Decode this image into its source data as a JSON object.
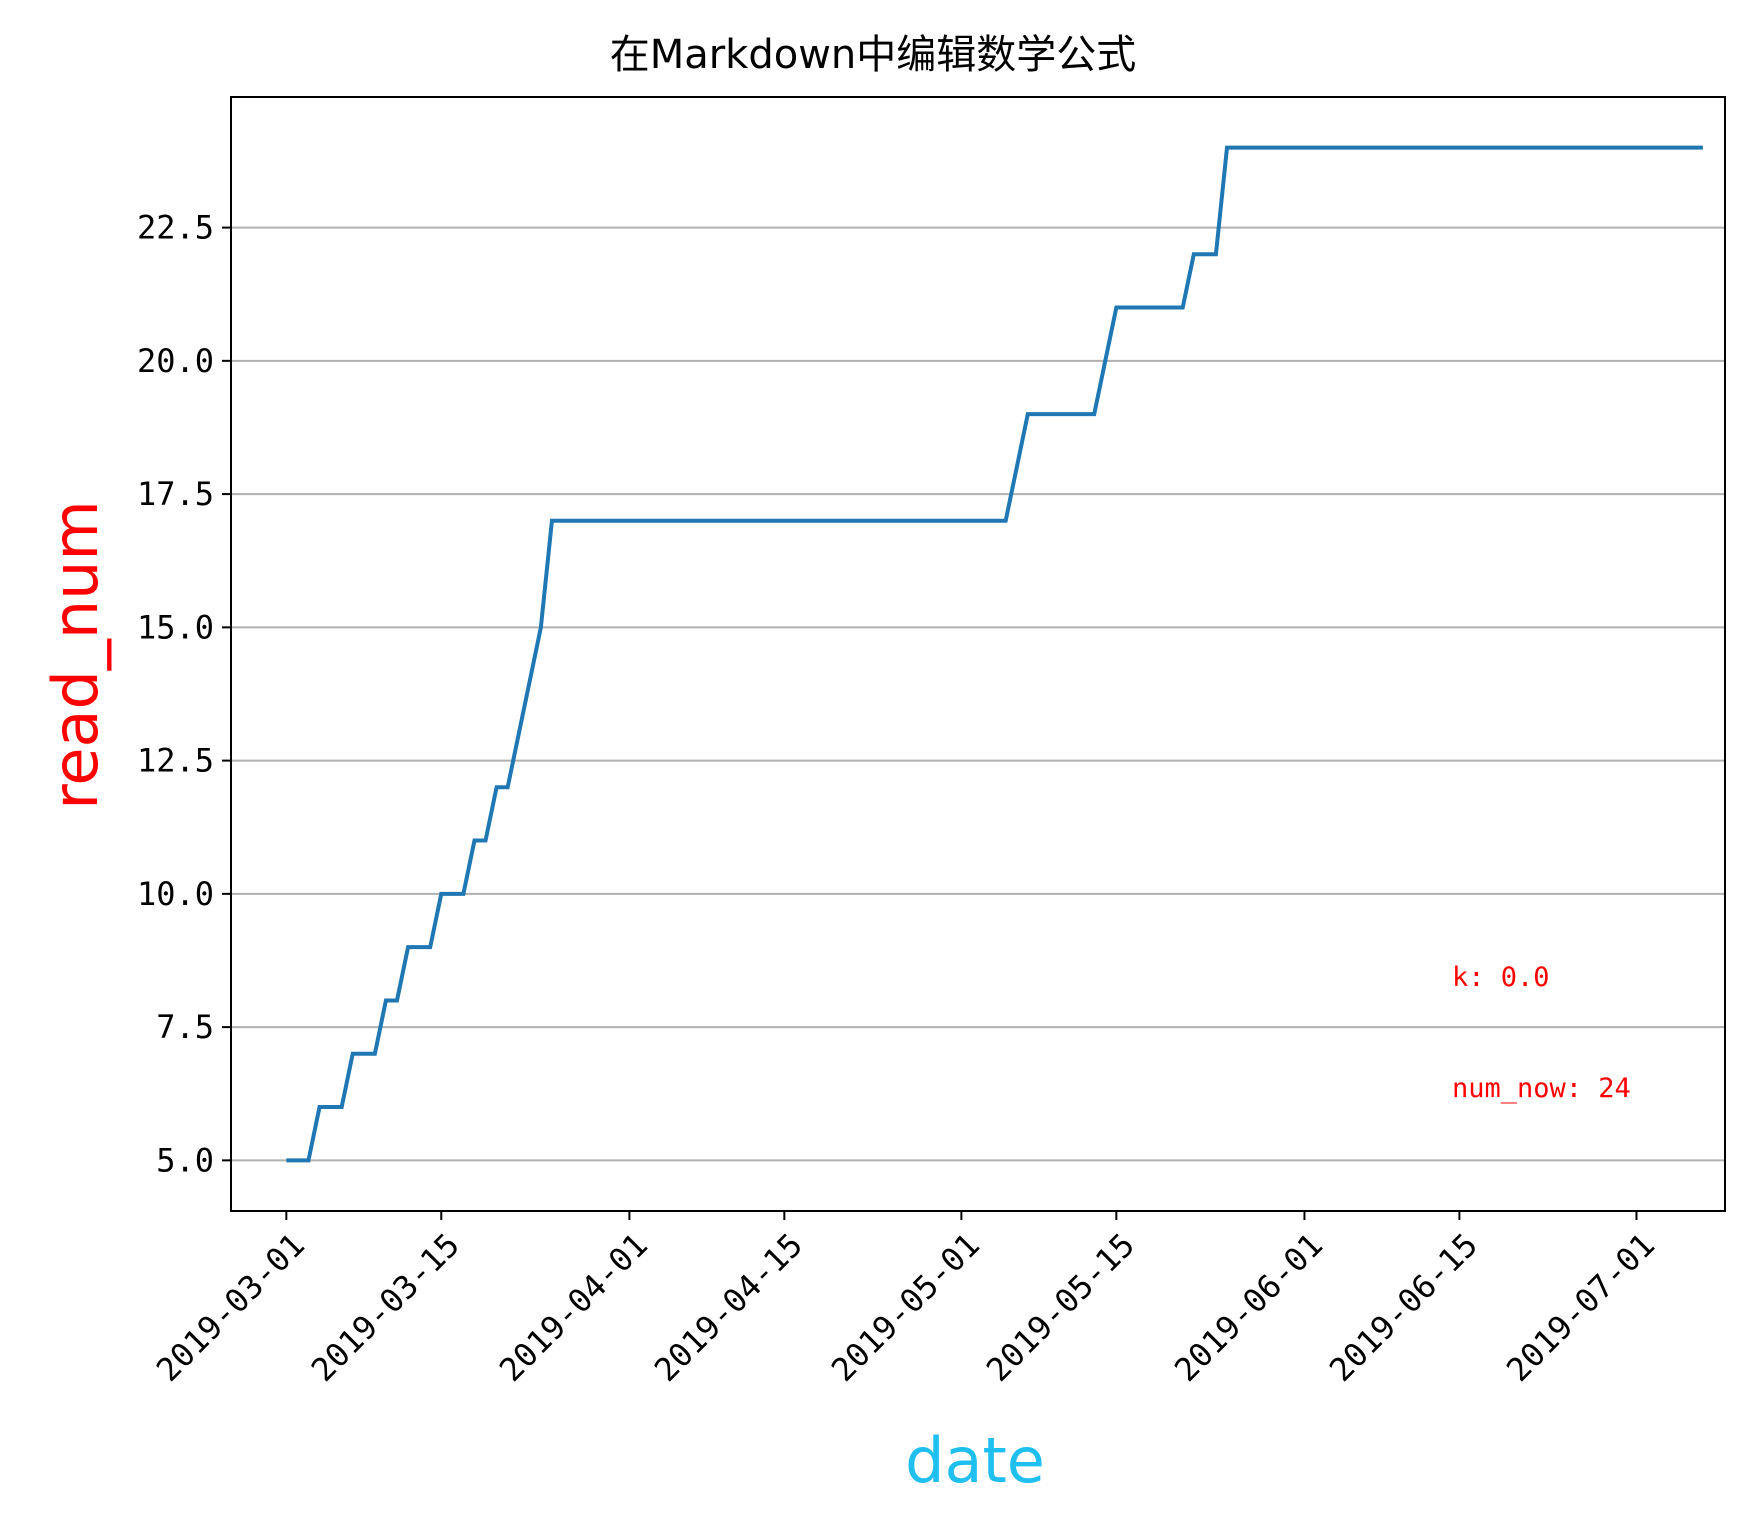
{
  "chart_data": {
    "type": "line",
    "title": "在Markdown中编辑数学公式",
    "xlabel": "date",
    "ylabel": "read_num",
    "xlabel_color": "#1fbfef",
    "ylabel_color": "#ff0000",
    "line_color": "#1f77b4",
    "grid_color": "#b0b0b0",
    "grid": "horizontal",
    "x_type": "date",
    "xlim": [
      "2019-02-24",
      "2019-07-09"
    ],
    "ylim": [
      4.05,
      24.95
    ],
    "x_ticks": [
      "2019-03-01",
      "2019-03-15",
      "2019-04-01",
      "2019-04-15",
      "2019-05-01",
      "2019-05-15",
      "2019-06-01",
      "2019-06-15",
      "2019-07-01"
    ],
    "y_ticks": [
      5.0,
      7.5,
      10.0,
      12.5,
      15.0,
      17.5,
      20.0,
      22.5
    ],
    "y_tick_labels": [
      "5.0",
      "7.5",
      "10.0",
      "12.5",
      "15.0",
      "17.5",
      "20.0",
      "22.5"
    ],
    "series": [
      {
        "points": [
          [
            "2019-03-01",
            5
          ],
          [
            "2019-03-03",
            5
          ],
          [
            "2019-03-04",
            6
          ],
          [
            "2019-03-06",
            6
          ],
          [
            "2019-03-07",
            7
          ],
          [
            "2019-03-09",
            7
          ],
          [
            "2019-03-10",
            8
          ],
          [
            "2019-03-11",
            8
          ],
          [
            "2019-03-12",
            9
          ],
          [
            "2019-03-14",
            9
          ],
          [
            "2019-03-15",
            10
          ],
          [
            "2019-03-17",
            10
          ],
          [
            "2019-03-18",
            11
          ],
          [
            "2019-03-19",
            11
          ],
          [
            "2019-03-20",
            12
          ],
          [
            "2019-03-21",
            12
          ],
          [
            "2019-03-24",
            15
          ],
          [
            "2019-03-25",
            17
          ],
          [
            "2019-05-05",
            17
          ],
          [
            "2019-05-07",
            19
          ],
          [
            "2019-05-13",
            19
          ],
          [
            "2019-05-15",
            21
          ],
          [
            "2019-05-21",
            21
          ],
          [
            "2019-05-22",
            22
          ],
          [
            "2019-05-24",
            22
          ],
          [
            "2019-05-25",
            24
          ],
          [
            "2019-07-07",
            24
          ]
        ]
      }
    ],
    "annotations": [
      {
        "text": "k: 0.0",
        "color": "#ff0000"
      },
      {
        "text": "num_now: 24",
        "color": "#ff0000"
      }
    ]
  }
}
